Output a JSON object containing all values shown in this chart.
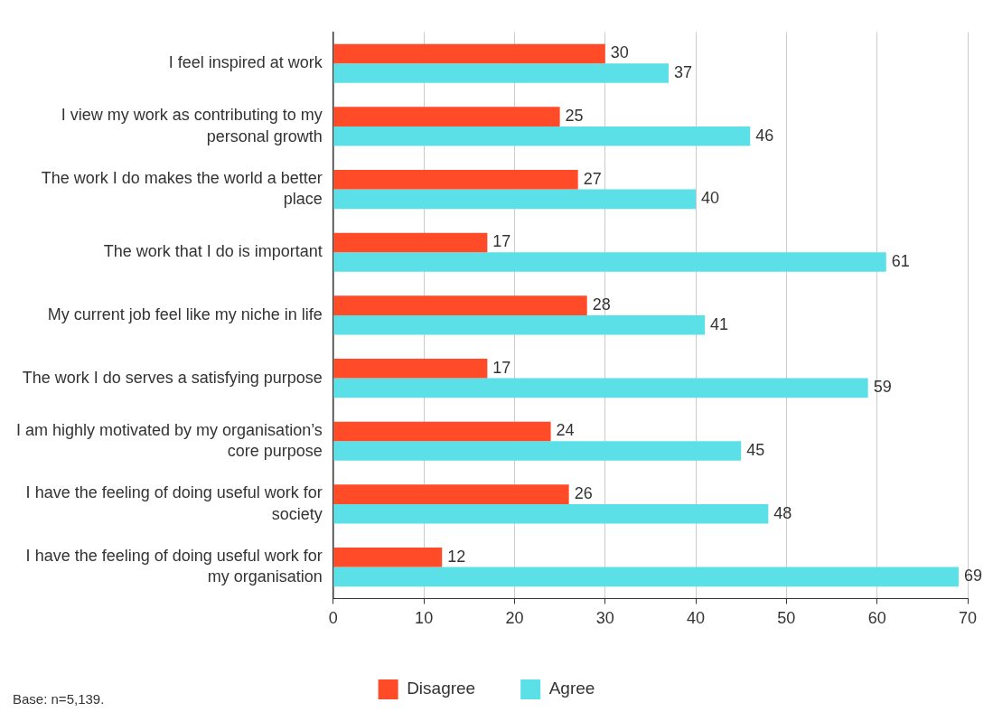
{
  "chart_data": {
    "type": "bar",
    "orientation": "horizontal",
    "categories": [
      "I feel inspired at work",
      "I view my work as contributing to my personal growth",
      "The work I do makes the world a better place",
      "The work that I do is important",
      "My current job feel like my niche in life",
      "The work I do serves a satisfying purpose",
      "I am highly motivated by my organisation’s core purpose",
      "I have the feeling of doing useful work for society",
      "I have the feeling of doing useful work for my organisation"
    ],
    "series": [
      {
        "name": "Disagree",
        "color": "#ff4b27",
        "values": [
          30,
          25,
          27,
          17,
          28,
          17,
          24,
          26,
          12
        ]
      },
      {
        "name": "Agree",
        "color": "#5ce0e8",
        "values": [
          37,
          46,
          40,
          61,
          41,
          59,
          45,
          48,
          69
        ]
      }
    ],
    "xlim": [
      0,
      70
    ],
    "xticks": [
      0,
      10,
      20,
      30,
      40,
      50,
      60,
      70
    ],
    "grid": "x",
    "legend": "bottom",
    "data_labels": true,
    "annotations": [
      "Base: n=5,139."
    ]
  }
}
